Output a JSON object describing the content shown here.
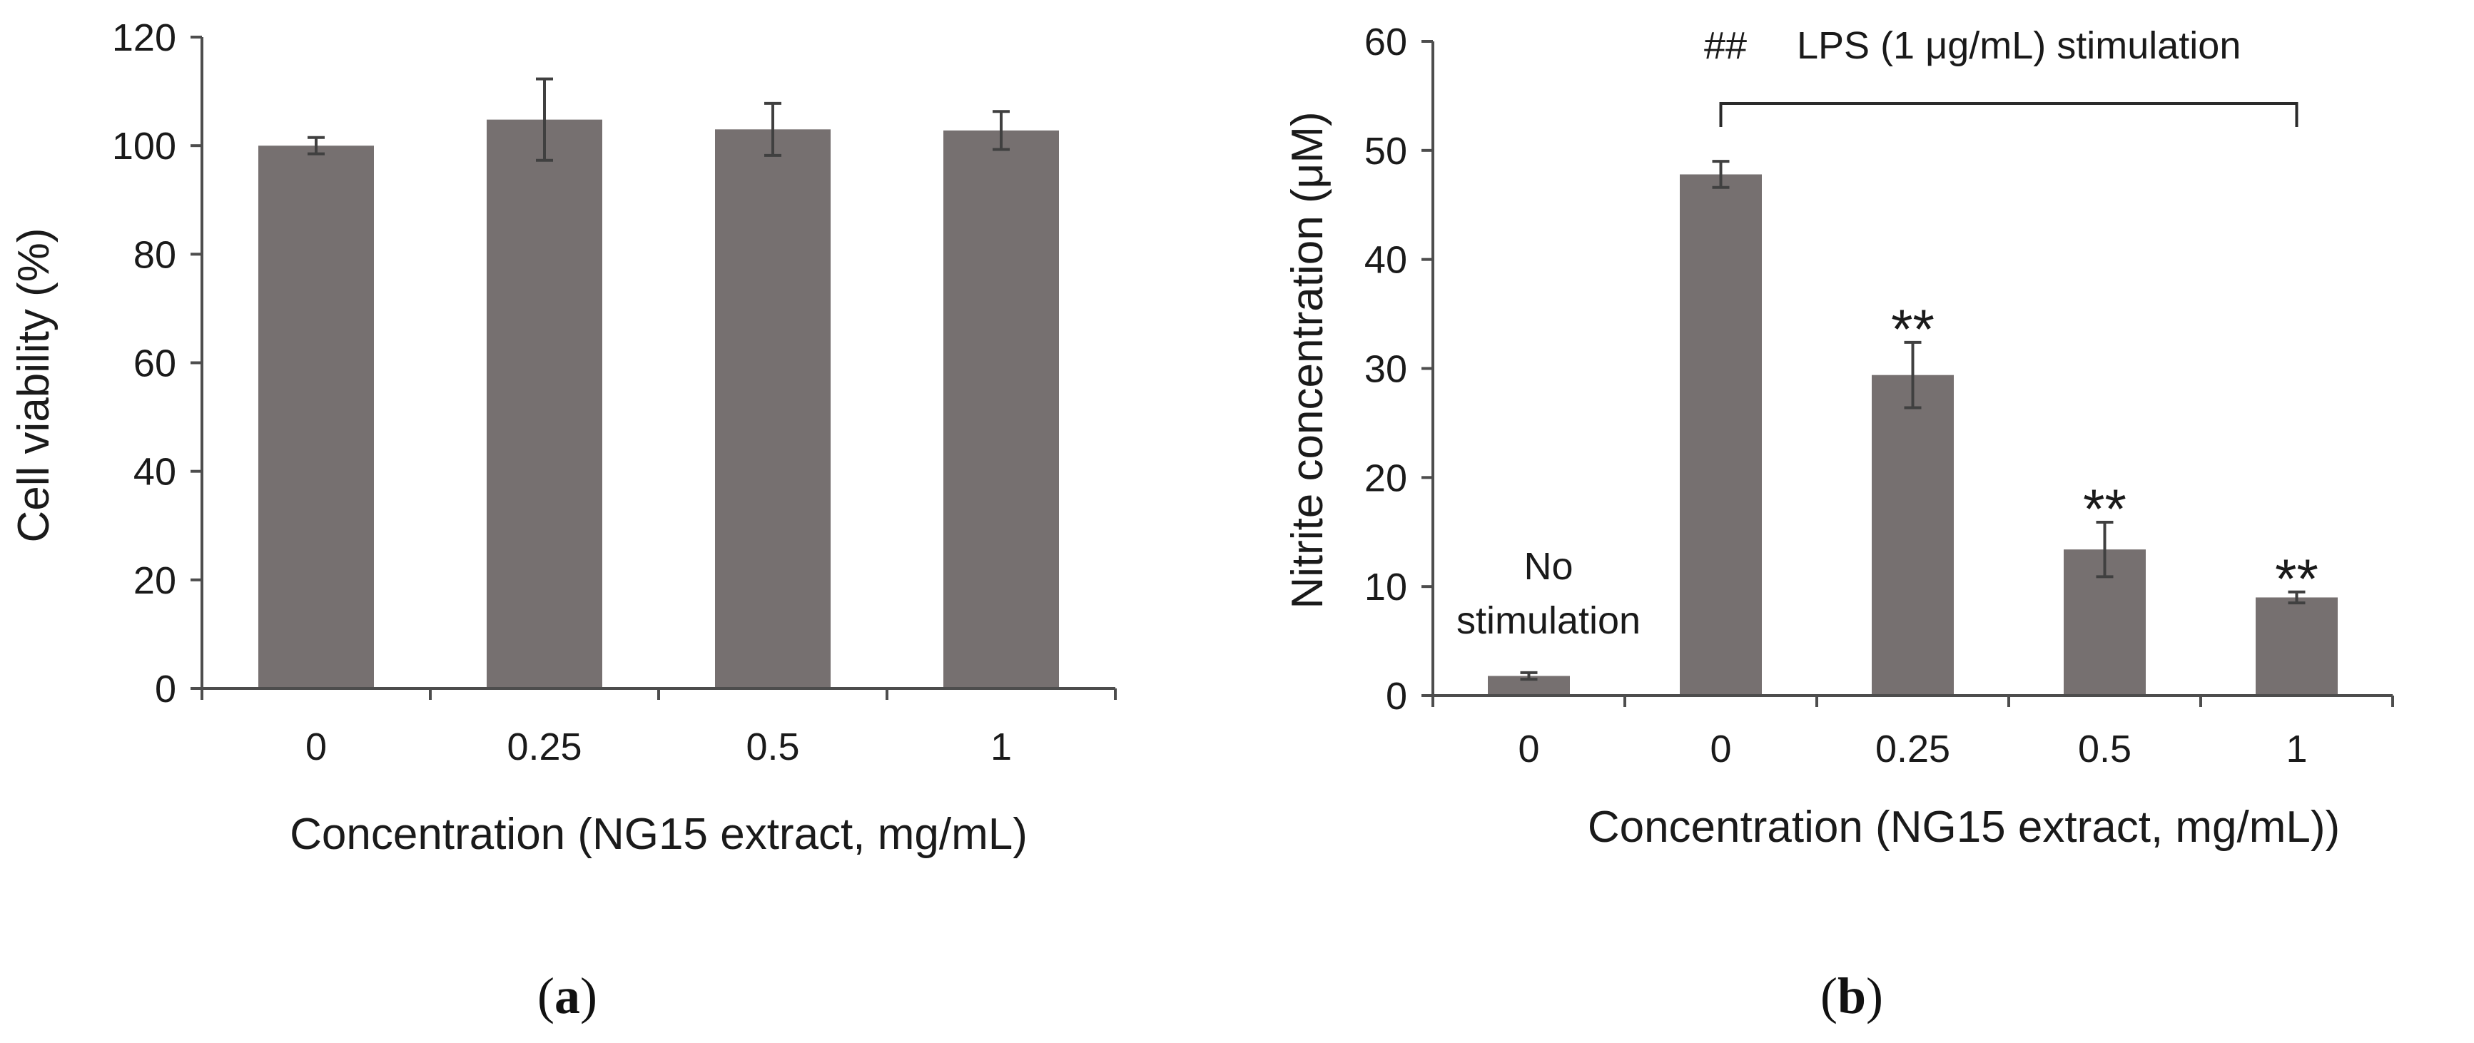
{
  "colors": {
    "bar": "#767070",
    "axis": "#4d4d4d",
    "error": "#404040",
    "text": "#1a1a1a"
  },
  "chart_data": [
    {
      "panel": "a",
      "panel_label": {
        "open": "(",
        "letter": "a",
        "close": ")"
      },
      "type": "bar",
      "title": "",
      "xlabel": "Concentration (NG15 extract, mg/mL)",
      "ylabel": "Cell viability (%)",
      "categories": [
        "0",
        "0.25",
        "0.5",
        "1"
      ],
      "values": [
        100,
        104.8,
        103,
        102.8
      ],
      "errors": [
        1.5,
        7.5,
        4.8,
        3.5
      ],
      "ylim": [
        0,
        120
      ],
      "yticks": [
        0,
        20,
        40,
        60,
        80,
        100,
        120
      ],
      "grid": false,
      "legend": null
    },
    {
      "panel": "b",
      "panel_label": {
        "open": "(",
        "letter": "b",
        "close": ")"
      },
      "type": "bar",
      "title": "",
      "xlabel": "Concentration (NG15 extract, mg/mL))",
      "ylabel": "Nitrite concentration (μM)",
      "categories": [
        "0",
        "0",
        "0.25",
        "0.5",
        "1"
      ],
      "values": [
        1.8,
        47.8,
        29.4,
        13.4,
        9.0
      ],
      "errors": [
        0.3,
        1.2,
        3.0,
        2.5,
        0.5
      ],
      "significance": [
        "",
        "",
        "**",
        "**",
        "**"
      ],
      "ylim": [
        0,
        60
      ],
      "yticks": [
        0,
        10,
        20,
        30,
        40,
        50,
        60
      ],
      "grid": false,
      "legend": null,
      "annotations": {
        "no_stim_line1": "No",
        "no_stim_line2": "stimulation",
        "lps_hash": "##",
        "lps_label": "LPS (1 μg/mL) stimulation",
        "bracket_from_category_index": 1,
        "bracket_to_category_index": 4
      }
    }
  ]
}
